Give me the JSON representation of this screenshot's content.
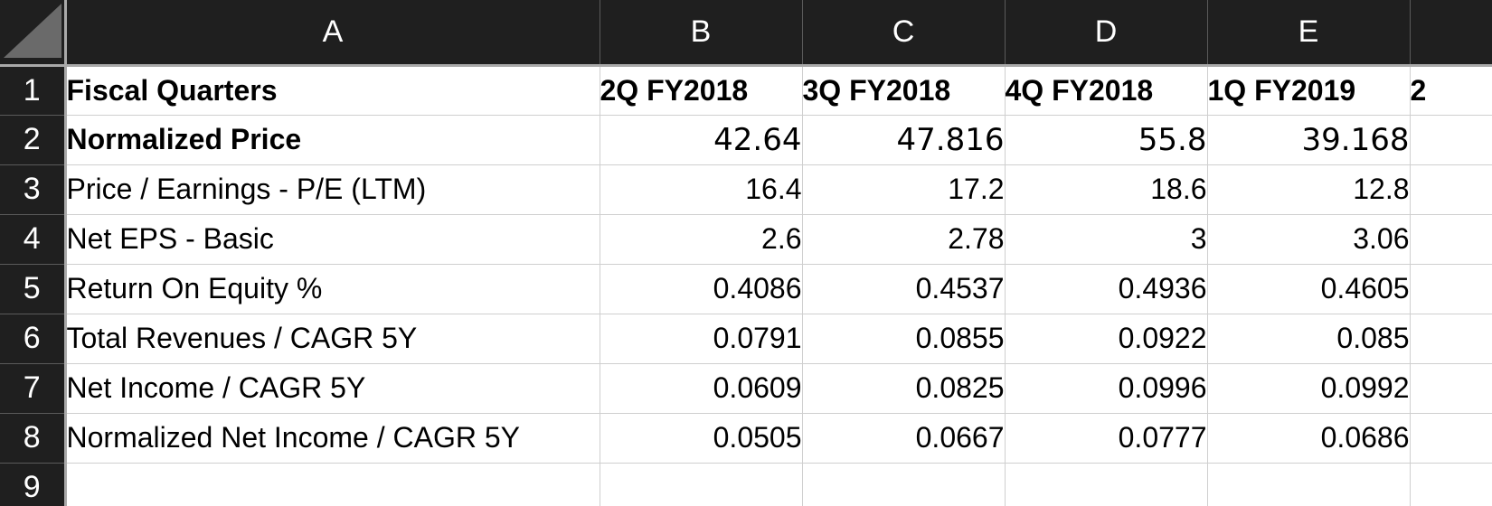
{
  "columns": [
    "A",
    "B",
    "C",
    "D",
    "E"
  ],
  "rows": [
    {
      "num": "1",
      "label": "Fiscal Quarters",
      "values": [
        "2Q FY2018",
        "3Q FY2018",
        "4Q FY2018",
        "1Q FY2019"
      ],
      "overflow": "2"
    },
    {
      "num": "2",
      "label": "Normalized Price",
      "values": [
        "42.64",
        "47.816",
        "55.8",
        "39.168"
      ]
    },
    {
      "num": "3",
      "label": "Price / Earnings - P/E (LTM)",
      "values": [
        "16.4",
        "17.2",
        "18.6",
        "12.8"
      ]
    },
    {
      "num": "4",
      "label": "Net EPS - Basic",
      "values": [
        "2.6",
        "2.78",
        "3",
        "3.06"
      ]
    },
    {
      "num": "5",
      "label": "Return On Equity %",
      "values": [
        "0.4086",
        "0.4537",
        "0.4936",
        "0.4605"
      ]
    },
    {
      "num": "6",
      "label": "Total Revenues / CAGR 5Y",
      "values": [
        "0.0791",
        "0.0855",
        "0.0922",
        "0.085"
      ]
    },
    {
      "num": "7",
      "label": "Net Income / CAGR 5Y",
      "values": [
        "0.0609",
        "0.0825",
        "0.0996",
        "0.0992"
      ]
    },
    {
      "num": "8",
      "label": "Normalized Net Income / CAGR 5Y",
      "values": [
        "0.0505",
        "0.0667",
        "0.0777",
        "0.0686"
      ]
    },
    {
      "num": "9",
      "label": "",
      "values": [
        "",
        "",
        "",
        ""
      ]
    }
  ]
}
